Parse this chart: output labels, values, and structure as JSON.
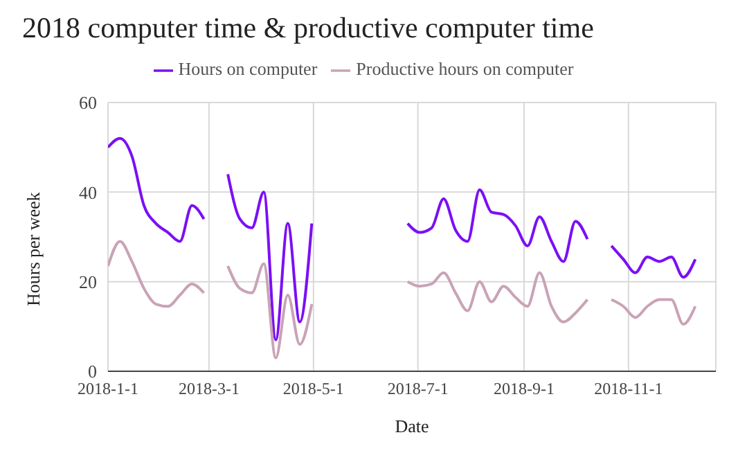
{
  "chart_data": {
    "type": "line",
    "title": "2018 computer time & productive computer time",
    "xlabel": "Date",
    "ylabel": "Hours per week",
    "x": [
      "2018-01-01",
      "2018-01-08",
      "2018-01-15",
      "2018-01-22",
      "2018-01-29",
      "2018-02-05",
      "2018-02-12",
      "2018-02-19",
      "2018-02-26",
      "2018-03-05",
      "2018-03-12",
      "2018-03-19",
      "2018-03-26",
      "2018-04-02",
      "2018-04-09",
      "2018-04-16",
      "2018-04-23",
      "2018-04-30",
      "2018-05-07",
      "2018-06-25",
      "2018-07-02",
      "2018-07-09",
      "2018-07-16",
      "2018-07-23",
      "2018-07-30",
      "2018-08-06",
      "2018-08-13",
      "2018-08-20",
      "2018-08-27",
      "2018-09-03",
      "2018-09-10",
      "2018-09-17",
      "2018-09-24",
      "2018-10-01",
      "2018-10-08",
      "2018-10-15",
      "2018-10-22",
      "2018-10-29",
      "2018-11-05",
      "2018-11-12",
      "2018-11-19",
      "2018-11-26",
      "2018-12-03",
      "2018-12-10"
    ],
    "series": [
      {
        "name": "Hours on computer",
        "color": "#7b0ff5",
        "values": [
          50,
          52,
          48,
          37,
          33,
          31,
          29,
          37,
          34,
          null,
          44,
          34,
          32,
          40,
          7,
          33,
          11,
          33,
          null,
          33,
          31,
          32,
          38.5,
          31.5,
          29,
          40.5,
          35.5,
          35,
          32.5,
          28,
          34.5,
          29,
          24.5,
          33.5,
          29.5,
          null,
          28,
          25,
          22,
          25.5,
          24.5,
          25.5,
          21,
          25
        ]
      },
      {
        "name": "Productive hours on computer",
        "color": "#c9a3b6",
        "values": [
          23.5,
          29,
          24.5,
          18.5,
          15,
          14.5,
          17,
          19.5,
          17.5,
          null,
          23.5,
          18.5,
          17.5,
          24,
          3,
          17,
          6,
          15,
          null,
          20,
          19,
          19.5,
          22,
          17.5,
          13.5,
          20,
          15.5,
          19,
          16.5,
          14.5,
          22,
          14.5,
          11,
          13,
          16,
          null,
          16,
          14.5,
          12,
          14.5,
          16,
          16,
          10.5,
          14.5
        ]
      }
    ],
    "xlim": [
      "2018-01-01",
      "2018-12-22"
    ],
    "xticks": [
      {
        "value": "2018-01-01",
        "label": "2018-1-1"
      },
      {
        "value": "2018-03-01",
        "label": "2018-3-1"
      },
      {
        "value": "2018-05-01",
        "label": "2018-5-1"
      },
      {
        "value": "2018-07-01",
        "label": "2018-7-1"
      },
      {
        "value": "2018-09-01",
        "label": "2018-9-1"
      },
      {
        "value": "2018-11-01",
        "label": "2018-11-1"
      }
    ],
    "ylim": [
      0,
      60
    ],
    "yticks": [
      0,
      20,
      40,
      60
    ],
    "grid": true,
    "legend": "top",
    "marker": "none",
    "line_style": "solid"
  }
}
